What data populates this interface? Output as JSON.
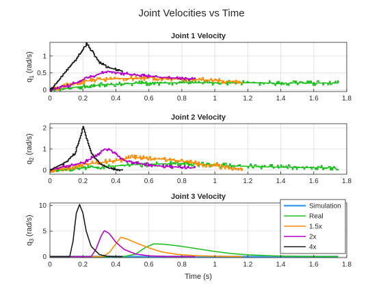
{
  "figure": {
    "title": "Joint Velocities vs Time",
    "xlabel": "Time (s)"
  },
  "legend": {
    "placement": "inside-top-right (Joint 3 plot)",
    "entries": [
      "Simulation",
      "Real",
      "1.5x",
      "2x",
      "4x"
    ]
  },
  "chart_data": [
    {
      "type": "line",
      "title": "Joint 1 Velocity",
      "ylabel_main": "q",
      "ylabel_sub": "1",
      "ylabel_unit": " (rad/s)",
      "xlim": [
        0,
        1.8
      ],
      "ylim": [
        -0.05,
        1.4
      ],
      "xticks": [
        0,
        0.2,
        0.4,
        0.6,
        0.8,
        1,
        1.2,
        1.4,
        1.6,
        1.8
      ],
      "xtick_labels": [
        "0",
        "0.2",
        "0.4",
        "0.6",
        "0.8",
        "1",
        "1.2",
        "1.4",
        "1.6",
        "1.8"
      ],
      "yticks": [
        0,
        0.5,
        1
      ],
      "ytick_labels": [
        "0",
        "0.5",
        "1"
      ],
      "grid": true,
      "series": [
        {
          "key": "real",
          "color": "#1fbf1f",
          "noise": 0.07,
          "seed": 11,
          "x": [
            0,
            0.05,
            0.15,
            0.3,
            0.45,
            0.6,
            0.8,
            1.0,
            1.2,
            1.4,
            1.6,
            1.75
          ],
          "y": [
            0,
            0.02,
            0.08,
            0.14,
            0.18,
            0.2,
            0.21,
            0.21,
            0.21,
            0.2,
            0.2,
            0.2
          ]
        },
        {
          "key": "x1_5",
          "color": "#ff8c00",
          "noise": 0.07,
          "seed": 23,
          "x": [
            0,
            0.05,
            0.1,
            0.2,
            0.3,
            0.4,
            0.5,
            0.6,
            0.7,
            0.8,
            0.9,
            1.0,
            1.1,
            1.17
          ],
          "y": [
            0,
            0.05,
            0.15,
            0.25,
            0.3,
            0.33,
            0.34,
            0.34,
            0.33,
            0.32,
            0.3,
            0.28,
            0.25,
            0.2
          ]
        },
        {
          "key": "x2",
          "color": "#b400c8",
          "noise": 0.05,
          "seed": 37,
          "x": [
            0,
            0.05,
            0.1,
            0.2,
            0.3,
            0.35,
            0.45,
            0.55,
            0.65,
            0.75,
            0.88
          ],
          "y": [
            0,
            0.05,
            0.1,
            0.3,
            0.48,
            0.55,
            0.48,
            0.42,
            0.38,
            0.35,
            0.32
          ]
        },
        {
          "key": "x4",
          "color": "#1a1a1a",
          "noise": 0.04,
          "seed": 41,
          "x": [
            0,
            0.03,
            0.08,
            0.13,
            0.18,
            0.22,
            0.26,
            0.3,
            0.36,
            0.44
          ],
          "y": [
            0,
            0.15,
            0.45,
            0.75,
            1.05,
            1.35,
            1.1,
            0.8,
            0.65,
            0.55
          ]
        }
      ]
    },
    {
      "type": "line",
      "title": "Joint 2 Velocity",
      "ylabel_main": "q",
      "ylabel_sub": "2",
      "ylabel_unit": " (rad/s)",
      "xlim": [
        0,
        1.8
      ],
      "ylim": [
        -0.2,
        2.2
      ],
      "xticks": [
        0,
        0.2,
        0.4,
        0.6,
        0.8,
        1,
        1.2,
        1.4,
        1.6,
        1.8
      ],
      "xtick_labels": [
        "0",
        "0.2",
        "0.4",
        "0.6",
        "0.8",
        "1",
        "1.2",
        "1.4",
        "1.6",
        "1.8"
      ],
      "yticks": [
        0,
        1,
        2
      ],
      "ytick_labels": [
        "0",
        "1",
        "2"
      ],
      "grid": true,
      "series": [
        {
          "key": "real",
          "color": "#1fbf1f",
          "noise": 0.12,
          "seed": 53,
          "x": [
            0,
            0.1,
            0.3,
            0.5,
            0.7,
            0.9,
            1.1,
            1.3,
            1.5,
            1.75
          ],
          "y": [
            0,
            0.05,
            0.15,
            0.25,
            0.3,
            0.28,
            0.2,
            0.15,
            0.12,
            0.1
          ]
        },
        {
          "key": "x1_5",
          "color": "#ff8c00",
          "noise": 0.12,
          "seed": 67,
          "x": [
            0,
            0.1,
            0.2,
            0.3,
            0.4,
            0.5,
            0.6,
            0.7,
            0.8,
            0.9,
            1.0,
            1.1,
            1.17
          ],
          "y": [
            0,
            0.1,
            0.25,
            0.35,
            0.45,
            0.6,
            0.55,
            0.5,
            0.42,
            0.3,
            0.2,
            0.1,
            0.05
          ]
        },
        {
          "key": "x2",
          "color": "#b400c8",
          "noise": 0.08,
          "seed": 71,
          "x": [
            0,
            0.1,
            0.2,
            0.28,
            0.33,
            0.36,
            0.4,
            0.45,
            0.55,
            0.65,
            0.75,
            0.88
          ],
          "y": [
            0,
            0.2,
            0.35,
            0.7,
            1.0,
            0.95,
            0.75,
            0.45,
            0.3,
            0.2,
            0.15,
            0.1
          ]
        },
        {
          "key": "x4",
          "color": "#1a1a1a",
          "noise": 0.05,
          "seed": 83,
          "x": [
            0,
            0.05,
            0.1,
            0.15,
            0.18,
            0.2,
            0.22,
            0.25,
            0.3,
            0.35,
            0.4,
            0.44
          ],
          "y": [
            0,
            0.2,
            0.4,
            0.8,
            1.5,
            2.1,
            1.5,
            0.8,
            0.3,
            0.1,
            0.03,
            0
          ]
        }
      ]
    },
    {
      "type": "line",
      "title": "Joint 3 Velocity",
      "ylabel_main": "q",
      "ylabel_sub": "3",
      "ylabel_unit": " (rad/s)",
      "xlim": [
        0,
        1.8
      ],
      "ylim": [
        -0.2,
        10.5
      ],
      "xticks": [
        0,
        0.2,
        0.4,
        0.6,
        0.8,
        1,
        1.2,
        1.4,
        1.6,
        1.8
      ],
      "xtick_labels": [
        "0",
        "0.2",
        "0.4",
        "0.6",
        "0.8",
        "1",
        "1.2",
        "1.4",
        "1.6",
        "1.8"
      ],
      "yticks": [
        0,
        5,
        10
      ],
      "ytick_labels": [
        "0",
        "5",
        "10"
      ],
      "grid": true,
      "series": [
        {
          "key": "simulation",
          "color": "#3f9fea",
          "noise": 0,
          "seed": 1,
          "x": [
            0,
            0.4,
            0.8,
            1.2,
            1.75
          ],
          "y": [
            0,
            0,
            0,
            0,
            0
          ]
        },
        {
          "key": "real",
          "color": "#1fbf1f",
          "noise": 0,
          "seed": 2,
          "x": [
            0,
            0.45,
            0.52,
            0.58,
            0.63,
            0.7,
            0.8,
            0.9,
            1.0,
            1.1,
            1.2,
            1.35,
            1.5,
            1.75
          ],
          "y": [
            0,
            0,
            0.5,
            1.8,
            2.5,
            2.4,
            2.0,
            1.5,
            1.0,
            0.6,
            0.35,
            0.15,
            0.05,
            0
          ]
        },
        {
          "key": "x1_5",
          "color": "#ff8c00",
          "noise": 0,
          "seed": 3,
          "x": [
            0,
            0.32,
            0.36,
            0.4,
            0.43,
            0.47,
            0.53,
            0.6,
            0.68,
            0.78,
            0.9,
            1.05,
            1.17
          ],
          "y": [
            0,
            0,
            0.8,
            2.5,
            3.8,
            3.4,
            2.6,
            1.7,
            0.9,
            0.4,
            0.15,
            0.05,
            0
          ]
        },
        {
          "key": "x2",
          "color": "#b400c8",
          "noise": 0,
          "seed": 4,
          "x": [
            0,
            0.25,
            0.28,
            0.31,
            0.33,
            0.36,
            0.4,
            0.45,
            0.52,
            0.6,
            0.7,
            0.88
          ],
          "y": [
            0,
            0,
            1.5,
            4.0,
            5.1,
            4.5,
            2.8,
            1.4,
            0.5,
            0.15,
            0.03,
            0
          ]
        },
        {
          "key": "x4",
          "color": "#1a1a1a",
          "noise": 0,
          "seed": 5,
          "x": [
            0,
            0.12,
            0.14,
            0.16,
            0.18,
            0.2,
            0.22,
            0.25,
            0.3,
            0.35,
            0.44
          ],
          "y": [
            0,
            0,
            3,
            8.5,
            10.2,
            8.5,
            5.0,
            2.0,
            0.4,
            0.05,
            0
          ]
        }
      ]
    }
  ]
}
